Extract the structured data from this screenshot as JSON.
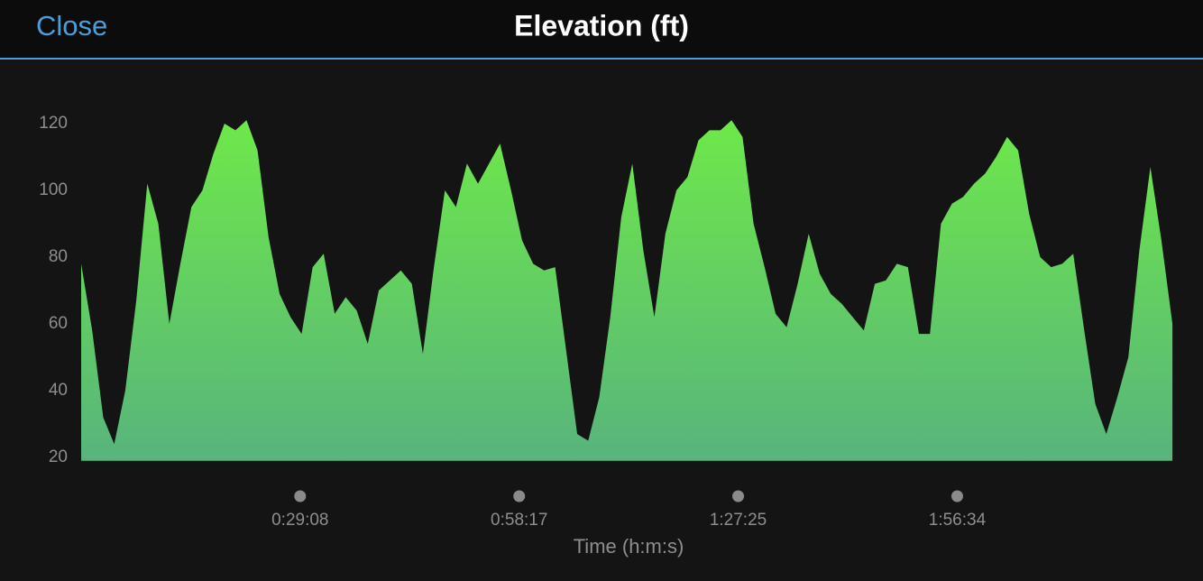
{
  "close_button": "Close",
  "chart_data": {
    "type": "area",
    "title": "Elevation (ft)",
    "x_label": "Time (h:m:s)",
    "color": "#6ee84a",
    "x": [
      0,
      88,
      176,
      264,
      352,
      440,
      528,
      616,
      704,
      792,
      880,
      968,
      1056,
      1144,
      1232,
      1320,
      1408,
      1496,
      1584,
      1672,
      1760,
      1848,
      1936,
      2024,
      2112,
      2200,
      2288,
      2376,
      2464,
      2552,
      2640,
      2728,
      2816,
      2904,
      2992,
      3080,
      3168,
      3256,
      3344,
      3432,
      3520,
      3608,
      3696,
      3784,
      3872,
      3960,
      4048,
      4136,
      4224,
      4312,
      4400,
      4488,
      4576,
      4664,
      4752,
      4840,
      4928,
      5016,
      5104,
      5192,
      5280,
      5368,
      5456,
      5544,
      5632,
      5720,
      5808,
      5896,
      5984,
      6072,
      6160,
      6248,
      6336,
      6424,
      6512,
      6600,
      6688,
      6776,
      6864,
      6952,
      7040,
      7128,
      7216,
      7304,
      7392,
      7480,
      7568,
      7656,
      7744,
      7832,
      7920,
      8008,
      8096,
      8184,
      8272,
      8360,
      8448,
      8536,
      8624,
      8712
    ],
    "values": [
      78,
      58,
      32,
      24,
      40,
      67,
      102,
      90,
      60,
      78,
      95,
      100,
      111,
      120,
      118,
      121,
      112,
      86,
      69,
      62,
      57,
      77,
      81,
      63,
      68,
      64,
      54,
      70,
      73,
      76,
      72,
      51,
      77,
      100,
      95,
      108,
      102,
      108,
      114,
      100,
      85,
      78,
      76,
      77,
      52,
      27,
      25,
      38,
      62,
      92,
      108,
      82,
      62,
      87,
      100,
      104,
      115,
      118,
      118,
      121,
      116,
      90,
      77,
      63,
      59,
      72,
      87,
      75,
      69,
      66,
      62,
      58,
      72,
      73,
      78,
      77,
      57,
      57,
      90,
      96,
      98,
      102,
      105,
      110,
      116,
      112,
      93,
      80,
      77,
      78,
      81,
      58,
      36,
      27,
      38,
      50,
      82,
      107,
      85,
      60
    ],
    "xlim": [
      0,
      8740
    ],
    "xticks": [
      {
        "value": 1748,
        "label": "0:29:08"
      },
      {
        "value": 3497,
        "label": "0:58:17"
      },
      {
        "value": 5245,
        "label": "1:27:25"
      },
      {
        "value": 6994,
        "label": "1:56:34"
      }
    ],
    "ylim": [
      19,
      122
    ],
    "yticks": [
      20,
      40,
      60,
      80,
      100,
      120
    ]
  }
}
